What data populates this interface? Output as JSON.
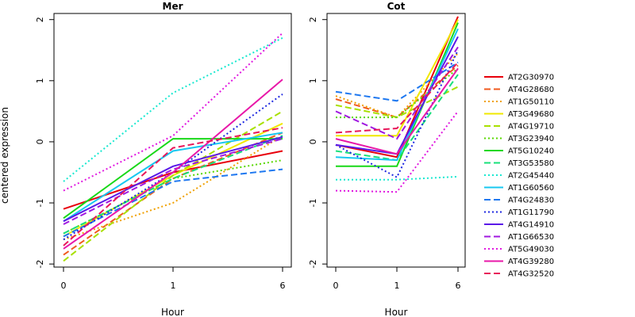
{
  "chart_data": {
    "type": "line",
    "ylabel": "centered expression",
    "ylim": [
      -2.05,
      2.1
    ],
    "y_ticks": [
      -2,
      -1,
      0,
      1,
      2
    ],
    "x_tick_labels": [
      "0",
      "1",
      "6"
    ],
    "panels": [
      {
        "title": "Mer",
        "xlabel": "Hour",
        "series_values": {
          "AT2G30970": [
            -1.1,
            -0.5,
            -0.15
          ],
          "AT4G28680": [
            -1.85,
            -0.6,
            0.15
          ],
          "AT1G50110": [
            -1.6,
            -1.0,
            0.1
          ],
          "AT3G49680": [
            -1.55,
            -0.55,
            0.3
          ],
          "AT4G19710": [
            -1.95,
            -0.55,
            0.5
          ],
          "AT3G23940": [
            -1.5,
            -0.6,
            -0.3
          ],
          "AT5G10240": [
            -1.25,
            0.05,
            0.05
          ],
          "AT3G53580": [
            -1.5,
            -0.6,
            0.1
          ],
          "AT2G45440": [
            -0.65,
            0.8,
            1.7
          ],
          "AT1G60560": [
            -1.3,
            -0.15,
            0.15
          ],
          "AT4G24830": [
            -1.55,
            -0.65,
            -0.45
          ],
          "AT1G11790": [
            -1.6,
            -0.5,
            0.78
          ],
          "AT4G14910": [
            -1.3,
            -0.4,
            0.08
          ],
          "AT1G66530": [
            -1.35,
            -0.45,
            0.05
          ],
          "AT5G49030": [
            -0.8,
            0.1,
            1.78
          ],
          "AT4G39280": [
            -1.75,
            -0.5,
            1.02
          ],
          "AT4G32520": [
            -1.7,
            -0.1,
            0.23
          ]
        }
      },
      {
        "title": "Cot",
        "xlabel": "Hour",
        "series_values": {
          "AT2G30970": [
            -0.05,
            -0.25,
            2.05
          ],
          "AT4G28680": [
            0.7,
            0.4,
            1.25
          ],
          "AT1G50110": [
            0.75,
            0.4,
            1.45
          ],
          "AT3G49680": [
            0.1,
            0.1,
            2.0
          ],
          "AT4G19710": [
            0.6,
            0.4,
            0.9
          ],
          "AT3G23940": [
            0.4,
            0.4,
            1.2
          ],
          "AT5G10240": [
            -0.4,
            -0.4,
            1.95
          ],
          "AT3G53580": [
            -0.15,
            -0.3,
            1.1
          ],
          "AT2G45440": [
            -0.62,
            -0.62,
            -0.57
          ],
          "AT1G60560": [
            -0.25,
            -0.3,
            1.85
          ],
          "AT4G24830": [
            0.82,
            0.67,
            1.3
          ],
          "AT1G11790": [
            -0.05,
            -0.58,
            1.5
          ],
          "AT4G14910": [
            -0.05,
            -0.2,
            1.72
          ],
          "AT1G66530": [
            0.5,
            0.05,
            1.55
          ],
          "AT5G49030": [
            -0.8,
            -0.82,
            0.5
          ],
          "AT4G39280": [
            0.05,
            -0.2,
            1.2
          ],
          "AT4G32520": [
            0.15,
            0.22,
            1.3
          ]
        }
      }
    ],
    "series": [
      {
        "name": "AT2G30970",
        "color": "#E8000B",
        "dash": "solid"
      },
      {
        "name": "AT4G28680",
        "color": "#F05A1E",
        "dash": "dashed"
      },
      {
        "name": "AT1G50110",
        "color": "#F0A000",
        "dash": "dotted"
      },
      {
        "name": "AT3G49680",
        "color": "#F0E800",
        "dash": "solid"
      },
      {
        "name": "AT4G19710",
        "color": "#A8E000",
        "dash": "dashed"
      },
      {
        "name": "AT3G23940",
        "color": "#5AD800",
        "dash": "dotted"
      },
      {
        "name": "AT5G10240",
        "color": "#18D818",
        "dash": "solid"
      },
      {
        "name": "AT3G53580",
        "color": "#18E07A",
        "dash": "dashed"
      },
      {
        "name": "AT2G45440",
        "color": "#18E8D0",
        "dash": "dotted"
      },
      {
        "name": "AT1G60560",
        "color": "#18C8F0",
        "dash": "solid"
      },
      {
        "name": "AT4G24830",
        "color": "#1E78F0",
        "dash": "dashed"
      },
      {
        "name": "AT1G11790",
        "color": "#1E28E0",
        "dash": "dotted"
      },
      {
        "name": "AT4G14910",
        "color": "#5A18E8",
        "dash": "solid"
      },
      {
        "name": "AT1G66530",
        "color": "#A018E0",
        "dash": "dashed"
      },
      {
        "name": "AT5G49030",
        "color": "#E018E0",
        "dash": "dotted"
      },
      {
        "name": "AT4G39280",
        "color": "#E818A8",
        "dash": "solid"
      },
      {
        "name": "AT4G32520",
        "color": "#E8185A",
        "dash": "dashed"
      }
    ],
    "legend_position": "right",
    "grid": false
  }
}
